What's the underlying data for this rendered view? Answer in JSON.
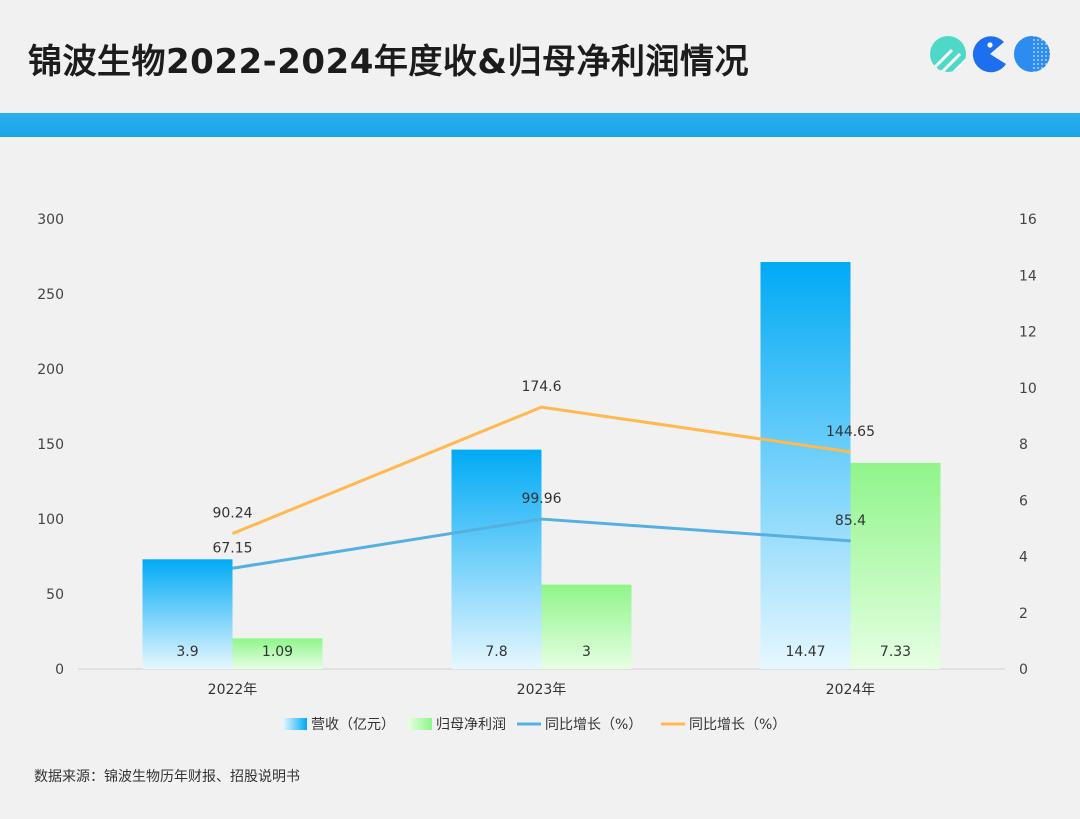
{
  "header": {
    "title": "锦波生物2022-2024年度收&归母净利润情况"
  },
  "logo": {
    "icons": [
      "striped-circle-icon",
      "pacman-icon",
      "dotted-circle-icon"
    ],
    "colors": [
      "#4dd8c8",
      "#1e6ff0",
      "#2d8cf0"
    ]
  },
  "colors": {
    "band": "#1aa3e6",
    "revenue_top": "#00aaf5",
    "revenue_bottom": "#e6f7ff",
    "profit_top": "#8ff58a",
    "profit_bottom": "#e6ffe3",
    "growth_rev_line": "#55b0e2",
    "growth_profit_line": "#ffb950"
  },
  "chart_data": {
    "type": "bar",
    "categories": [
      "2022年",
      "2023年",
      "2024年"
    ],
    "series": [
      {
        "name": "营收（亿元）",
        "kind": "bar",
        "axis": "right",
        "values": [
          3.9,
          7.8,
          14.47
        ],
        "labels": [
          "3.9",
          "7.8",
          "14.47"
        ]
      },
      {
        "name": "归母净利润",
        "kind": "bar",
        "axis": "right",
        "values": [
          1.09,
          3,
          7.33
        ],
        "labels": [
          "1.09",
          "3",
          "7.33"
        ]
      },
      {
        "name": "同比增长（%）",
        "kind": "line",
        "axis": "left",
        "values": [
          67.15,
          99.96,
          85.4
        ],
        "labels": [
          "67.15",
          "99.96",
          "85.4"
        ]
      },
      {
        "name": "同比增长（%）",
        "kind": "line",
        "axis": "left",
        "values": [
          90.24,
          174.6,
          144.65
        ],
        "labels": [
          "90.24",
          "174.6",
          "144.65"
        ]
      }
    ],
    "y_left": {
      "min": 0,
      "max": 300,
      "ticks": [
        "0",
        "50",
        "100",
        "150",
        "200",
        "250",
        "300"
      ]
    },
    "y_right": {
      "min": 0,
      "max": 16,
      "ticks": [
        "0",
        "2",
        "4",
        "6",
        "8",
        "10",
        "12",
        "14",
        "16"
      ]
    },
    "grid": false,
    "legend_position": "bottom"
  },
  "footer": {
    "source": "数据来源：锦波生物历年财报、招股说明书"
  }
}
